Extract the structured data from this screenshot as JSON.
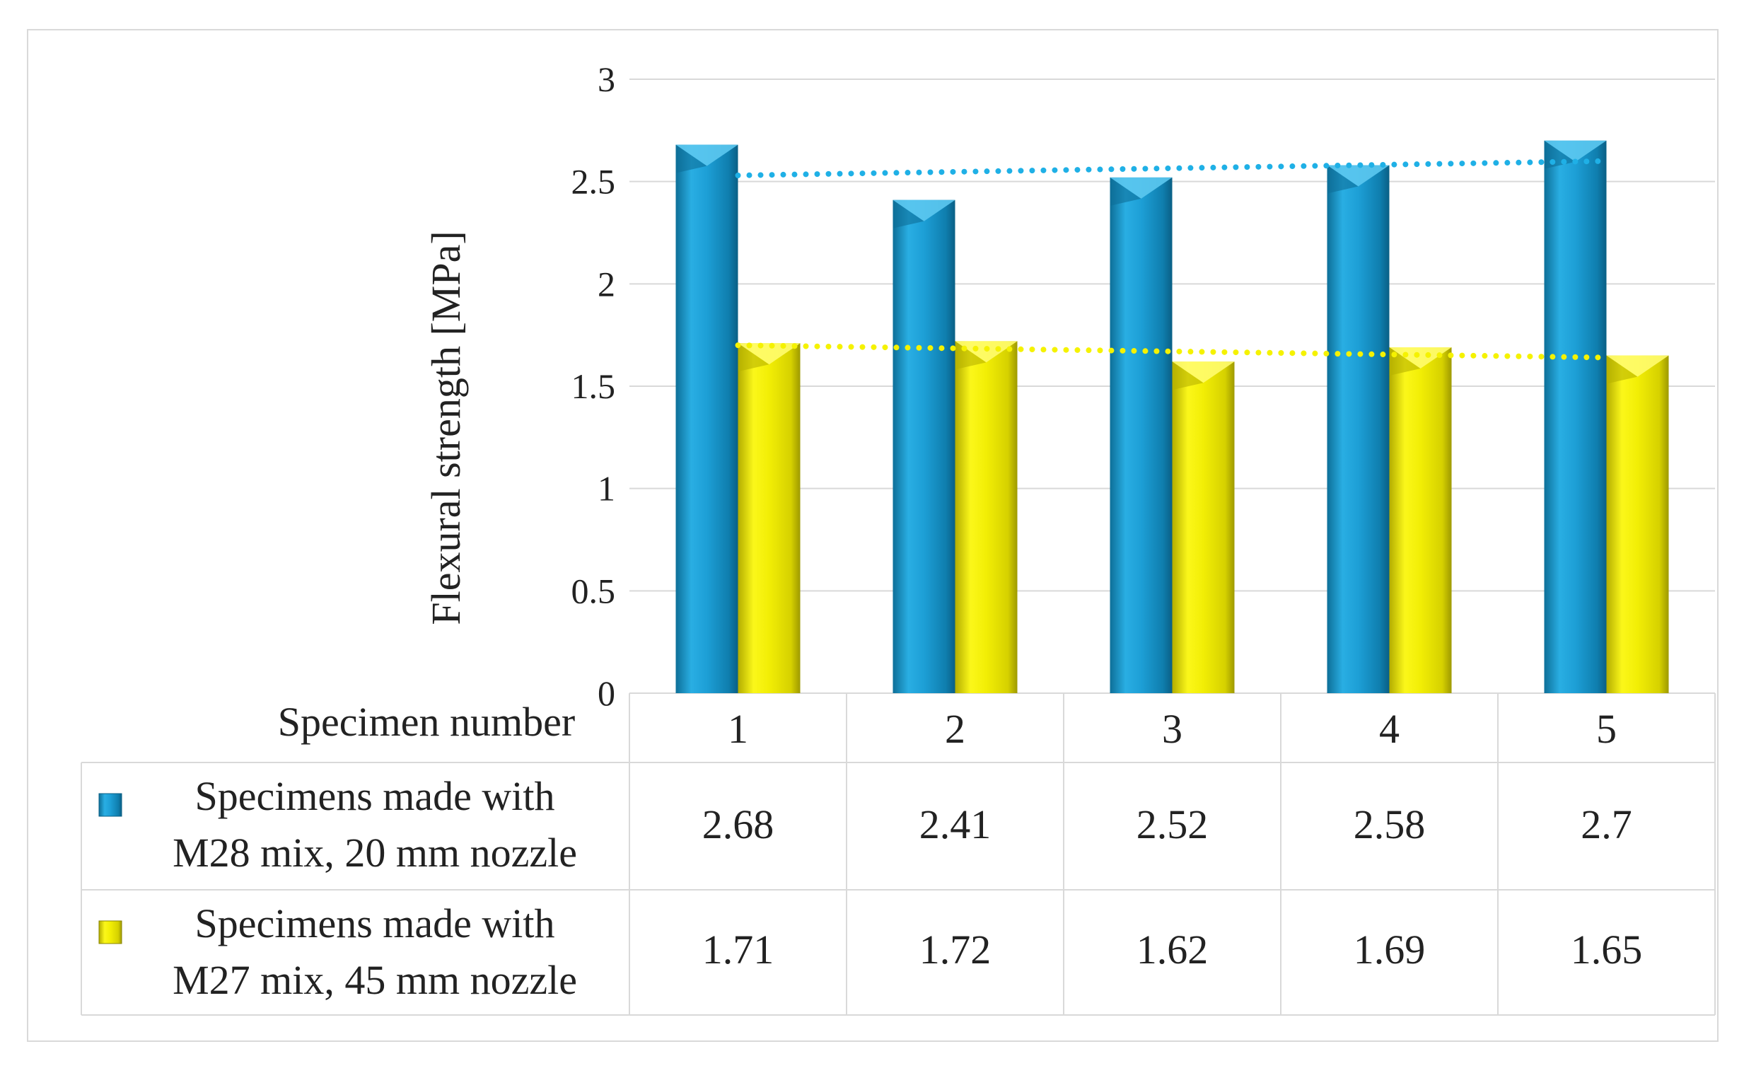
{
  "chart_data": {
    "type": "bar",
    "title": "",
    "xlabel": "Specimen number",
    "ylabel": "Flexural strength [MPa]",
    "ylim": [
      0,
      3
    ],
    "yticks": [
      "0",
      "0.5",
      "1",
      "1.5",
      "2",
      "2.5",
      "3"
    ],
    "categories": [
      "1",
      "2",
      "3",
      "4",
      "5"
    ],
    "series": [
      {
        "name_line1": "Specimens made with",
        "name_line2": "M28 mix, 20 mm nozzle",
        "values": [
          2.68,
          2.41,
          2.52,
          2.58,
          2.7
        ],
        "labels": [
          "2.68",
          "2.41",
          "2.52",
          "2.58",
          "2.7"
        ],
        "color": "#1a9fd4",
        "trend": [
          2.53,
          2.6
        ]
      },
      {
        "name_line1": "Specimens made with",
        "name_line2": "M27 mix, 45 mm nozzle",
        "values": [
          1.71,
          1.72,
          1.62,
          1.69,
          1.65
        ],
        "labels": [
          "1.71",
          "1.72",
          "1.62",
          "1.69",
          "1.65"
        ],
        "color": "#f2ee05",
        "trend": [
          1.7,
          1.64
        ]
      }
    ],
    "grid": true,
    "legend": "data-table"
  }
}
